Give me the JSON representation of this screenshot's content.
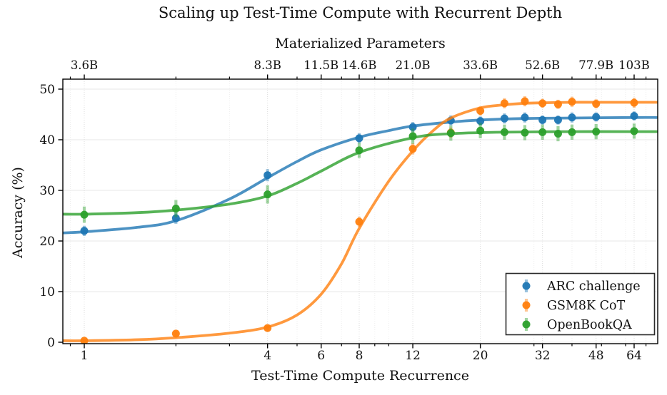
{
  "figure": {
    "title": "Scaling up Test-Time Compute with Recurrent Depth",
    "background_color": "#ffffff",
    "text_color": "#111111"
  },
  "chart_data": {
    "type": "line",
    "title": "Scaling up Test-Time Compute with Recurrent Depth",
    "xlabel": "Test-Time Compute Recurrence",
    "ylabel": "Accuracy (%)",
    "top_axis_label": "Materialized Parameters",
    "x_scale": "log",
    "xlim": [
      0.85,
      76
    ],
    "ylim": [
      0,
      52
    ],
    "grid": true,
    "legend_position": "lower right",
    "x": [
      1,
      2,
      4,
      8,
      12,
      16,
      20,
      24,
      28,
      32,
      36,
      40,
      48,
      64
    ],
    "x_ticks": {
      "values": [
        1,
        4,
        6,
        8,
        12,
        20,
        32,
        48,
        64
      ],
      "labels": [
        "1",
        "4",
        "6",
        "8",
        "12",
        "20",
        "32",
        "48",
        "64"
      ]
    },
    "x_minor_ticks": [
      0.9,
      2,
      3,
      5,
      7,
      9,
      10,
      30,
      40,
      50,
      60,
      70
    ],
    "top_ticks": {
      "values": [
        1,
        4,
        6,
        8,
        12,
        20,
        32,
        48,
        64
      ],
      "labels": [
        "3.6B",
        "8.3B",
        "11.5B",
        "14.6B",
        "21.0B",
        "33.6B",
        "52.6B",
        "77.9B",
        "103B"
      ]
    },
    "y_ticks": {
      "values": [
        0,
        10,
        20,
        30,
        40,
        50
      ],
      "labels": [
        "0",
        "10",
        "20",
        "30",
        "40",
        "50"
      ]
    },
    "series": [
      {
        "name": "ARC challenge",
        "color": "#1f77b4",
        "values": [
          22.0,
          24.5,
          33.0,
          40.3,
          42.5,
          43.8,
          43.7,
          44.2,
          44.4,
          43.9,
          43.9,
          44.4,
          44.5,
          44.7
        ],
        "errors": [
          1.0,
          1.1,
          1.2,
          1.0,
          1.0,
          1.0,
          0.9,
          1.0,
          1.0,
          0.9,
          0.9,
          1.0,
          0.9,
          0.9
        ],
        "fit": {
          "r": [
            0.85,
            1,
            1.5,
            2,
            3,
            4,
            5,
            6,
            8,
            10,
            12,
            16,
            20,
            28,
            40,
            64,
            76
          ],
          "v": [
            21.6,
            21.8,
            22.7,
            24.0,
            28.3,
            32.5,
            35.7,
            38.0,
            40.5,
            41.8,
            42.7,
            43.5,
            43.9,
            44.2,
            44.3,
            44.4,
            44.4
          ]
        }
      },
      {
        "name": "GSM8K CoT",
        "color": "#ff7f0e",
        "values": [
          0.3,
          1.7,
          2.8,
          23.8,
          38.2,
          41.4,
          45.7,
          47.2,
          47.6,
          47.2,
          47.0,
          47.5,
          47.1,
          47.3
        ],
        "errors": [
          0.3,
          0.5,
          0.5,
          1.0,
          1.1,
          1.0,
          0.9,
          1.0,
          1.0,
          0.9,
          0.9,
          1.0,
          0.9,
          1.0
        ],
        "fit": {
          "r": [
            0.85,
            1,
            1.5,
            2,
            3,
            4,
            5,
            6,
            7,
            8,
            10,
            12,
            14,
            16,
            20,
            24,
            28,
            32,
            40,
            48,
            64,
            76
          ],
          "v": [
            0.3,
            0.3,
            0.5,
            0.9,
            1.8,
            3.0,
            5.4,
            9.5,
            15.5,
            22.5,
            31.8,
            37.8,
            41.8,
            44.3,
            46.3,
            46.9,
            47.2,
            47.3,
            47.4,
            47.4,
            47.4,
            47.4
          ]
        }
      },
      {
        "name": "OpenBookQA",
        "color": "#2ca02c",
        "values": [
          25.2,
          26.4,
          29.2,
          37.9,
          40.7,
          41.3,
          41.8,
          41.5,
          41.4,
          41.5,
          41.2,
          41.5,
          41.6,
          41.7
        ],
        "errors": [
          1.6,
          1.7,
          1.8,
          1.5,
          1.5,
          1.5,
          1.5,
          1.5,
          1.5,
          1.5,
          1.5,
          1.5,
          1.5,
          1.5
        ],
        "fit": {
          "r": [
            0.85,
            1,
            1.5,
            2,
            3,
            4,
            5,
            6,
            8,
            12,
            16,
            24,
            40,
            64,
            76
          ],
          "v": [
            25.3,
            25.3,
            25.6,
            26.1,
            27.3,
            28.9,
            31.4,
            33.8,
            37.5,
            40.4,
            41.2,
            41.5,
            41.6,
            41.6,
            41.6
          ]
        }
      }
    ]
  }
}
